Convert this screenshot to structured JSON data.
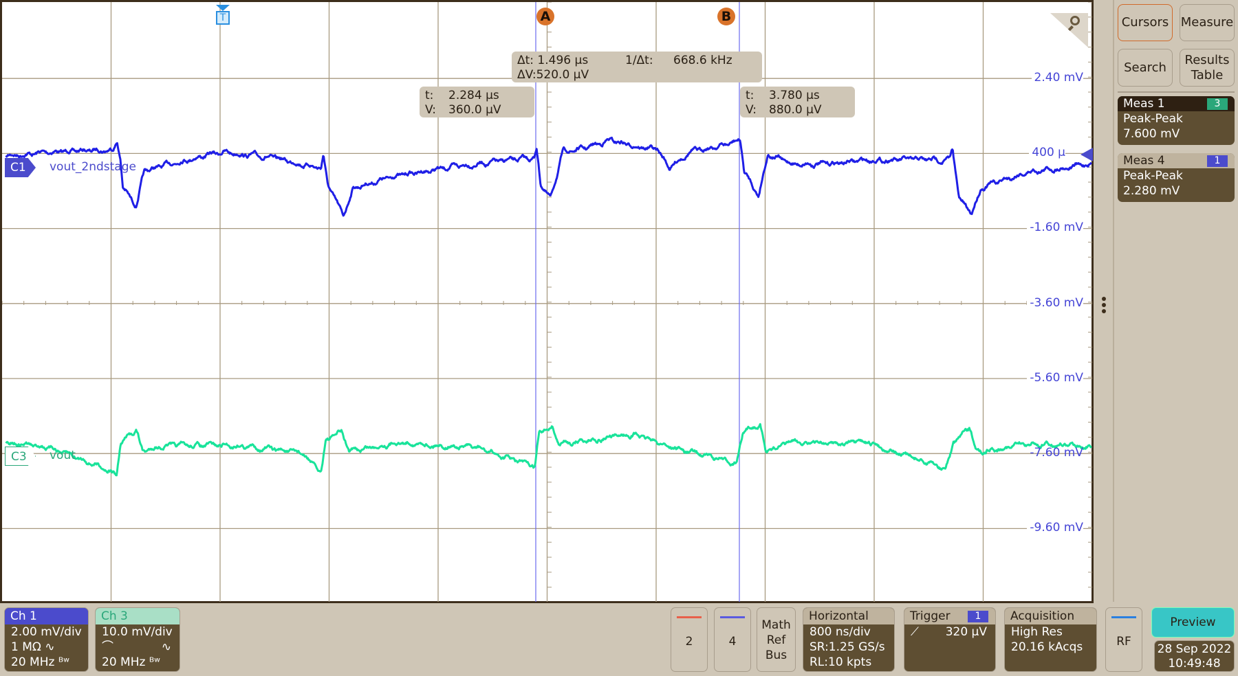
{
  "plot": {
    "y_labels": [
      "2.40 mV",
      "400 µ",
      "-1.60 mV",
      "-3.60 mV",
      "-5.60 mV",
      "-7.60 mV",
      "-9.60 mV"
    ],
    "trigger_marker": "T",
    "cursor_a": "A",
    "cursor_b": "B",
    "cursor_a_readout": {
      "t_label": "t:",
      "t": "2.284 µs",
      "v_label": "V:",
      "v": "360.0 µV"
    },
    "cursor_b_readout": {
      "t_label": "t:",
      "t": "3.780 µs",
      "v_label": "V:",
      "v": "880.0 µV"
    },
    "delta_readout": {
      "dt": "Δt: 1.496 µs",
      "inv_dt_label": "1/Δt:",
      "inv_dt": "668.6 kHz",
      "dv": "ΔV:520.0 µV"
    },
    "channels": [
      {
        "tag": "C1",
        "name": "vout_2ndstage",
        "color": "#1f1fe6",
        "tag_color": "#4b4bcc"
      },
      {
        "tag": "C3",
        "name": "vout",
        "color": "#19e39a",
        "tag_color": "#2aa77a"
      }
    ],
    "grid_color": "#a89a80"
  },
  "side": {
    "cursors": "Cursors",
    "measure": "Measure",
    "search": "Search",
    "results_table": "Results Table",
    "measurements": [
      {
        "title": "Meas 1",
        "source": "3",
        "source_color": "#2aa77a",
        "type": "Peak-Peak",
        "value": "7.600 mV"
      },
      {
        "title": "Meas 4",
        "source": "1",
        "source_color": "#4b4bcc",
        "type": "Peak-Peak",
        "value": "2.280 mV"
      }
    ]
  },
  "bottom": {
    "ch1": {
      "title": "Ch 1",
      "scale": "2.00 mV/div",
      "coupling": "1 MΩ ∿",
      "bw": "20 MHz ᴮʷ"
    },
    "ch3": {
      "title": "Ch 3",
      "scale": "10.0 mV/div",
      "probe": "⌒",
      "coupling": "∿",
      "bw": "20 MHz ᴮʷ"
    },
    "btn2": "2",
    "btn4": "4",
    "math_ref_bus": [
      "Math",
      "Ref",
      "Bus"
    ],
    "horizontal": {
      "title": "Horizontal",
      "scale": "800 ns/div",
      "sr": "SR:1.25 GS/s",
      "rl": "RL:10 kpts"
    },
    "trigger": {
      "title": "Trigger",
      "source": "1",
      "slope": "⟋",
      "level": "320 µV"
    },
    "acquisition": {
      "title": "Acquisition",
      "mode": "High Res",
      "count": "20.16 kAcqs"
    },
    "rf": "RF",
    "preview": "Preview",
    "date": "28 Sep 2022",
    "time": "10:49:48"
  }
}
